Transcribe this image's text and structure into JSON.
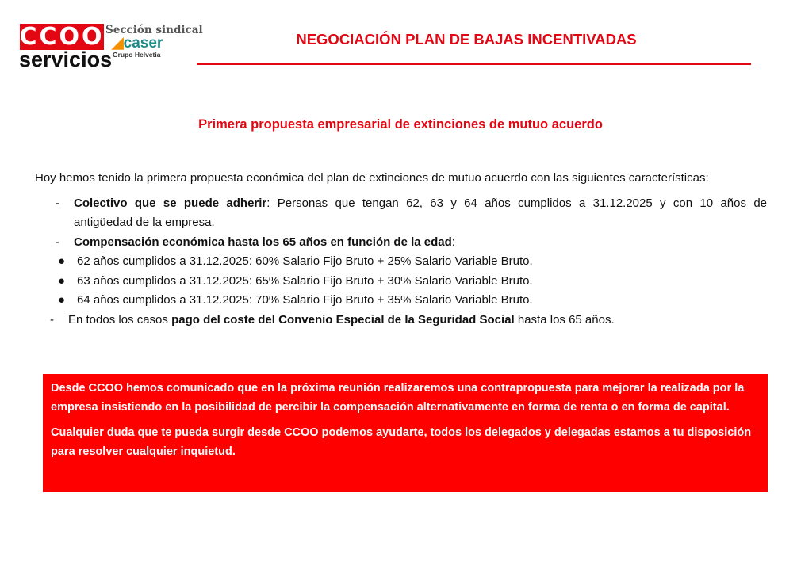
{
  "logo": {
    "ccoo": "CCOO",
    "servicios": "servicios",
    "seccion": "Sección sindical",
    "caser": "caser",
    "grupo": "Grupo Helvetia"
  },
  "header": {
    "title": "NEGOCIACIÓN PLAN DE BAJAS INCENTIVADAS"
  },
  "subtitle": "Primera propuesta empresarial de extinciones de mutuo acuerdo",
  "intro": "Hoy hemos tenido la primera propuesta económica del plan de extinciones de mutuo acuerdo con las siguientes características:",
  "items": {
    "colectivo_label": "Colectivo que se puede adherir",
    "colectivo_text": ":  Personas que tengan 62, 63 y 64 años cumplidos a 31.12.2025 y con 10 años de",
    "colectivo_text2": "antigüedad de la empresa.",
    "compensacion_label": "Compensación económica hasta los 65 años en función de la edad",
    "compensacion_colon": ":",
    "bullets": [
      "62 años cumplidos a 31.12.2025: 60% Salario Fijo Bruto + 25% Salario Variable Bruto.",
      "63 años cumplidos a 31.12.2025: 65% Salario Fijo Bruto + 30% Salario Variable Bruto.",
      "64 años cumplidos a 31.12.2025: 70% Salario Fijo Bruto + 35% Salario Variable Bruto."
    ],
    "todos_pre": "En todos los casos ",
    "todos_bold": "pago del coste del Convenio Especial de la Seguridad Social",
    "todos_post": " hasta los 65 años."
  },
  "notice": {
    "p1": "Desde CCOO hemos comunicado que en la próxima reunión realizaremos una contrapropuesta para mejorar la realizada por la empresa insistiendo en la posibilidad de percibir la compensación alternativamente en forma de renta o en forma de capital.",
    "p2": "Cualquier duda que te pueda surgir desde CCOO podemos ayudarte, todos los delegados y delegadas estamos a tu disposición para resolver cualquier inquietud."
  },
  "colors": {
    "accent": "#e30613",
    "box": "#fe0000"
  }
}
